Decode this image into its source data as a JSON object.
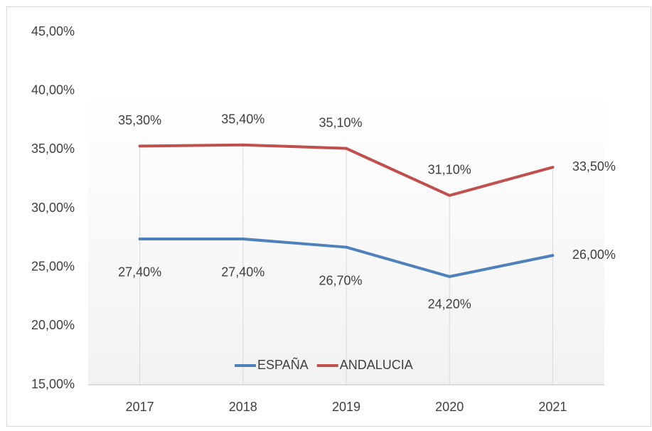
{
  "chart_data": {
    "type": "line",
    "categories": [
      "2017",
      "2018",
      "2019",
      "2020",
      "2021"
    ],
    "series": [
      {
        "name": "ESPAÑA",
        "color": "#4f81bd",
        "values": [
          27.4,
          27.4,
          26.7,
          24.2,
          26.0
        ],
        "value_labels": [
          "27,40%",
          "27,40%",
          "26,70%",
          "24,20%",
          "26,00%"
        ]
      },
      {
        "name": "ANDALUCIA",
        "color": "#c0504d",
        "values": [
          35.3,
          35.4,
          35.1,
          31.1,
          33.5
        ],
        "value_labels": [
          "35,30%",
          "35,40%",
          "35,10%",
          "31,10%",
          "33,50%"
        ]
      }
    ],
    "ylim": [
      15,
      45
    ],
    "yticks": [
      {
        "value": 15,
        "label": "15,00%"
      },
      {
        "value": 20,
        "label": "20,00%"
      },
      {
        "value": 25,
        "label": "25,00%"
      },
      {
        "value": 30,
        "label": "30,00%"
      },
      {
        "value": 35,
        "label": "35,00%"
      },
      {
        "value": 40,
        "label": "40,00%"
      },
      {
        "value": 45,
        "label": "45,00%"
      }
    ],
    "grid": false,
    "drop_lines": true,
    "legend": "bottom"
  }
}
